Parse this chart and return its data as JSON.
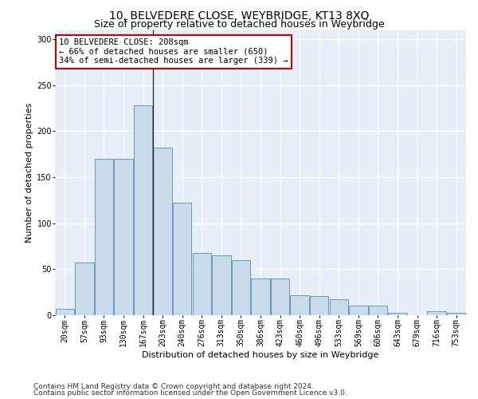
{
  "title1": "10, BELVEDERE CLOSE, WEYBRIDGE, KT13 8XQ",
  "title2": "Size of property relative to detached houses in Weybridge",
  "xlabel": "Distribution of detached houses by size in Weybridge",
  "ylabel": "Number of detached properties",
  "categories": [
    "20sqm",
    "57sqm",
    "93sqm",
    "130sqm",
    "167sqm",
    "203sqm",
    "240sqm",
    "276sqm",
    "313sqm",
    "350sqm",
    "386sqm",
    "423sqm",
    "460sqm",
    "496sqm",
    "533sqm",
    "569sqm",
    "606sqm",
    "643sqm",
    "679sqm",
    "716sqm",
    "753sqm"
  ],
  "values": [
    7,
    57,
    170,
    170,
    228,
    182,
    122,
    68,
    65,
    60,
    40,
    40,
    22,
    21,
    17,
    10,
    10,
    3,
    0,
    4,
    3
  ],
  "bar_color": "#c9daea",
  "bar_edge_color": "#6699bb",
  "vline_pos": 4.5,
  "vline_color": "#222222",
  "annotation_text": "10 BELVEDERE CLOSE: 208sqm\n← 66% of detached houses are smaller (650)\n34% of semi-detached houses are larger (339) →",
  "annotation_box_facecolor": "#ffffff",
  "annotation_box_edgecolor": "#cc0000",
  "ylim": [
    0,
    310
  ],
  "yticks": [
    0,
    50,
    100,
    150,
    200,
    250,
    300
  ],
  "background_color": "#e8eef8",
  "grid_color": "#ffffff",
  "footer1": "Contains HM Land Registry data © Crown copyright and database right 2024.",
  "footer2": "Contains public sector information licensed under the Open Government Licence v3.0.",
  "title1_fontsize": 10,
  "title2_fontsize": 9,
  "axis_fontsize": 8,
  "tick_fontsize": 7,
  "annot_fontsize": 7.5,
  "footer_fontsize": 6.5
}
